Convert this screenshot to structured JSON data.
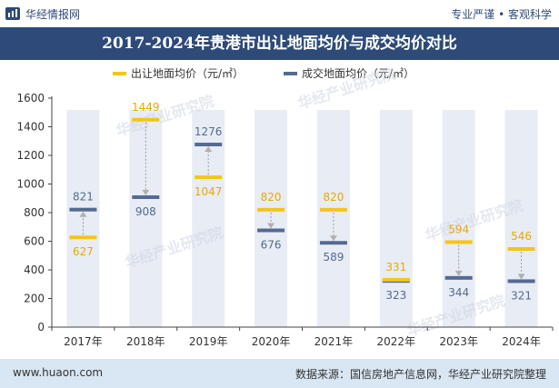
{
  "header": {
    "brand": "华经情报网",
    "tagline": "专业严谨 • 客观科学"
  },
  "footer": {
    "site": "www.huaon.com",
    "source": "数据来源：国信房地产信息网，华经产业研究院整理"
  },
  "watermarks": [
    "华经产业研究院",
    "华经产业研究院",
    "华经产业研究院",
    "华经产业研究院",
    "华经产业研究院"
  ],
  "colors": {
    "series1": "#f5c518",
    "series2": "#546a94",
    "title_bg": "#2d4a78",
    "column_bg": "#e8ecf4",
    "footer_bg": "#d9e6f3"
  },
  "chart_data": {
    "type": "line",
    "title": "2017-2024年贵港市出让地面均价与成交均价对比",
    "categories": [
      "2017年",
      "2018年",
      "2019年",
      "2020年",
      "2021年",
      "2022年",
      "2023年",
      "2024年"
    ],
    "series": [
      {
        "name": "出让地面均价（元/㎡）",
        "values": [
          627,
          1449,
          1047,
          820,
          820,
          331,
          594,
          546
        ]
      },
      {
        "name": "成交地面均价（元/㎡）",
        "values": [
          821,
          908,
          1276,
          676,
          589,
          323,
          344,
          321
        ]
      }
    ],
    "ylim": [
      0,
      1600
    ],
    "yticks": [
      0,
      200,
      400,
      600,
      800,
      1000,
      1200,
      1400,
      1600
    ],
    "xlabel": "",
    "ylabel": "",
    "legend": "top-center",
    "grid": false
  }
}
